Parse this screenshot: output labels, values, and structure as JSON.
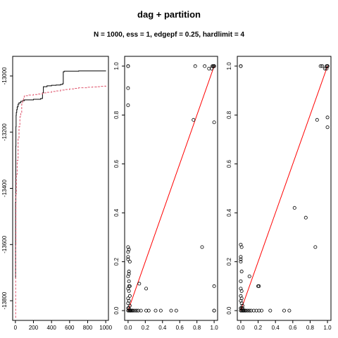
{
  "figure": {
    "title": "dag + partition",
    "subtitle": "N = 1000, ess = 1, edgepf = 0.25, hardlimit = 4"
  },
  "colors": {
    "axis": "#000000",
    "series_a": "#000000",
    "series_b": "#DF536B",
    "diagonal": "#FF0000"
  },
  "chart_data": [
    {
      "type": "line",
      "xlim": [
        -30,
        1030
      ],
      "ylim": [
        -13870,
        -12930
      ],
      "x_ticks": [
        0,
        200,
        400,
        600,
        800,
        1000
      ],
      "x_tick_labels": [
        "0",
        "200",
        "400",
        "600",
        "800",
        "1000"
      ],
      "y_ticks": [
        -13000,
        -13200,
        -13400,
        -13600,
        -13800
      ],
      "y_tick_labels": [
        "-13000",
        "-13200",
        "-13400",
        "-13600",
        "-13800"
      ],
      "series": [
        {
          "color": "#000000",
          "line_style": "solid",
          "x": [
            0,
            2,
            4,
            6,
            8,
            10,
            15,
            20,
            30,
            40,
            60,
            80,
            100,
            150,
            200,
            250,
            280,
            300,
            310,
            350,
            400,
            450,
            500,
            520,
            530,
            540,
            600,
            700,
            800,
            900,
            1000
          ],
          "y": [
            -13720,
            -13450,
            -13250,
            -13180,
            -13140,
            -13130,
            -13120,
            -13110,
            -13100,
            -13095,
            -13090,
            -13088,
            -13085,
            -13085,
            -13083,
            -13083,
            -13080,
            -13060,
            -13038,
            -13035,
            -13033,
            -13032,
            -13030,
            -13028,
            -12985,
            -12983,
            -12983,
            -12982,
            -12982,
            -12982,
            -12981
          ]
        },
        {
          "color": "#DF536B",
          "line_style": "dashed",
          "x": [
            0,
            3,
            6,
            10,
            20,
            30,
            40,
            50,
            60,
            70,
            80,
            90,
            100,
            150,
            200,
            250,
            300,
            350,
            400,
            450,
            500,
            550,
            600,
            650,
            700,
            800,
            850,
            900,
            950,
            990,
            1000
          ],
          "y": [
            -13860,
            -13600,
            -13420,
            -13350,
            -13300,
            -13220,
            -13180,
            -13145,
            -13130,
            -13100,
            -13085,
            -13075,
            -13070,
            -13068,
            -13066,
            -13064,
            -13060,
            -13058,
            -13055,
            -13053,
            -13050,
            -13048,
            -13046,
            -13044,
            -13042,
            -13040,
            -13039,
            -13038,
            -13037,
            -13036,
            -13040
          ]
        }
      ]
    },
    {
      "type": "scatter",
      "xlim": [
        -0.04,
        1.04
      ],
      "ylim": [
        -0.04,
        1.04
      ],
      "ticks": [
        0.0,
        0.2,
        0.4,
        0.6,
        0.8,
        1.0
      ],
      "tick_labels": [
        "0.0",
        "0.2",
        "0.4",
        "0.6",
        "0.8",
        "1.0"
      ],
      "reference_line": {
        "from": [
          0,
          0
        ],
        "to": [
          1,
          1
        ],
        "color": "#FF0000"
      },
      "points": {
        "x": [
          0.0,
          0.0,
          0.0,
          0.0,
          0.0,
          0.0,
          0.0,
          0.0,
          0.01,
          0.01,
          0.02,
          0.01,
          0.0,
          0.01,
          0.02,
          0.0,
          0.01,
          0.02,
          0.0,
          0.01,
          0.0,
          0.02,
          0.0,
          0.01,
          0.02,
          0.03,
          0.0,
          0.01,
          0.02,
          0.03,
          0.04,
          0.05,
          0.06,
          0.08,
          0.1,
          0.12,
          0.15,
          0.21,
          0.24,
          0.32,
          0.38,
          0.5,
          0.56,
          0.01,
          0.13,
          0.21,
          0.76,
          0.78,
          0.86,
          0.89,
          0.94,
          0.97,
          0.99,
          1.0,
          1.0,
          1.0,
          1.0,
          1.0,
          1.0,
          0.98,
          1.0,
          1.0
        ],
        "y": [
          1.0,
          1.0,
          0.91,
          0.84,
          0.26,
          0.24,
          0.22,
          0.21,
          0.25,
          0.16,
          0.2,
          0.15,
          0.14,
          0.12,
          0.1,
          0.09,
          0.08,
          0.06,
          0.05,
          0.04,
          0.03,
          0.02,
          0.01,
          0.01,
          0.0,
          0.0,
          0.0,
          0.0,
          0.0,
          0.0,
          0.0,
          0.0,
          0.0,
          0.0,
          0.0,
          0.0,
          0.0,
          0.0,
          0.0,
          0.0,
          0.0,
          0.0,
          0.0,
          0.1,
          0.11,
          0.09,
          0.78,
          1.0,
          0.26,
          1.0,
          0.99,
          0.99,
          1.0,
          1.0,
          1.0,
          0.77,
          0.1,
          0.0,
          0.0,
          1.0,
          1.0,
          1.0
        ]
      }
    },
    {
      "type": "scatter",
      "xlim": [
        -0.04,
        1.04
      ],
      "ylim": [
        -0.04,
        1.04
      ],
      "ticks": [
        0.0,
        0.2,
        0.4,
        0.6,
        0.8,
        1.0
      ],
      "tick_labels": [
        "0.0",
        "0.2",
        "0.4",
        "0.6",
        "0.8",
        "1.0"
      ],
      "reference_line": {
        "from": [
          0,
          0
        ],
        "to": [
          1,
          1
        ],
        "color": "#FF0000"
      },
      "points": {
        "x": [
          0.0,
          0.0,
          0.0,
          0.0,
          0.01,
          0.0,
          0.0,
          0.01,
          0.0,
          0.0,
          0.01,
          0.0,
          0.01,
          0.0,
          0.01,
          0.02,
          0.0,
          0.01,
          0.02,
          0.03,
          0.0,
          0.01,
          0.02,
          0.03,
          0.04,
          0.05,
          0.06,
          0.08,
          0.1,
          0.12,
          0.15,
          0.18,
          0.21,
          0.24,
          0.34,
          0.5,
          0.56,
          0.1,
          0.2,
          0.21,
          0.62,
          0.75,
          0.86,
          0.88,
          0.92,
          0.94,
          0.97,
          0.99,
          1.0,
          1.0,
          1.0,
          1.0,
          1.0,
          1.0,
          0.99,
          1.0
        ],
        "y": [
          1.0,
          1.0,
          0.27,
          0.22,
          0.26,
          0.21,
          0.2,
          0.16,
          0.12,
          0.09,
          0.08,
          0.06,
          0.05,
          0.04,
          0.03,
          0.02,
          0.0,
          0.0,
          0.0,
          0.0,
          0.01,
          0.01,
          0.01,
          0.0,
          0.0,
          0.0,
          0.0,
          0.0,
          0.0,
          0.0,
          0.0,
          0.0,
          0.0,
          0.0,
          0.0,
          0.0,
          0.0,
          0.14,
          0.1,
          0.1,
          0.42,
          0.38,
          0.26,
          0.78,
          1.0,
          1.0,
          0.99,
          0.99,
          1.0,
          1.0,
          1.0,
          0.79,
          0.75,
          1.0,
          1.0,
          1.0
        ]
      }
    }
  ]
}
